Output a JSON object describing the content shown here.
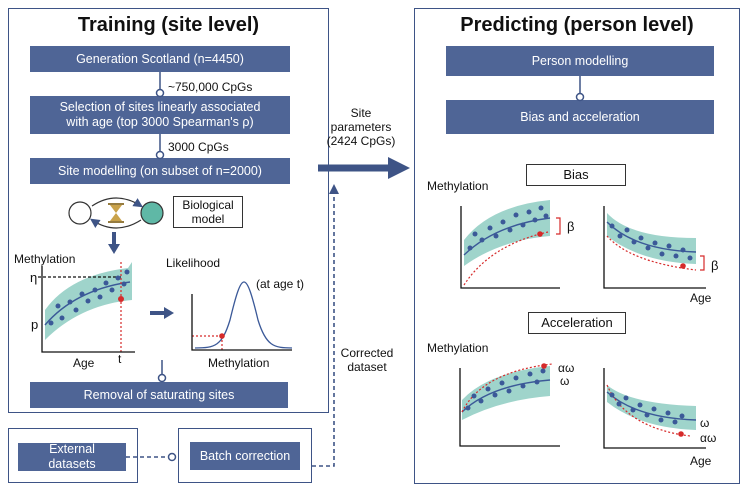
{
  "training": {
    "title": "Training (site level)",
    "step_cohort": "Generation Scotland (n=4450)",
    "count_cpgs": "~750,000 CpGs",
    "step_selection_line1": "Selection of sites linearly associated",
    "step_selection_line2": "with age (top 3000 Spearman's ρ)",
    "count_selected": "3000 CpGs",
    "step_modelling": "Site modelling (on subset of n=2000)",
    "biological_model_label": "Biological model",
    "methylation_axis": "Methylation",
    "eta_symbol": "η",
    "p_symbol": "p",
    "age_axis": "Age",
    "t_symbol": "t",
    "likelihood_label": "Likelihood",
    "at_age_label": "(at age t)",
    "likelihood_x_axis": "Methylation",
    "step_removal": "Removal of saturating sites"
  },
  "external": {
    "external_datasets": "External datasets",
    "batch_correction": "Batch correction"
  },
  "middle": {
    "site_parameters_line1": "Site",
    "site_parameters_line2": "parameters",
    "site_parameters_line3": "(2424 CpGs)",
    "corrected_line1": "Corrected",
    "corrected_line2": "dataset"
  },
  "predicting": {
    "title": "Predicting (person level)",
    "step_person": "Person modelling",
    "step_bias": "Bias and acceleration",
    "bias_label": "Bias",
    "methylation_axis_top": "Methylation",
    "beta_symbol": "β",
    "age_axis_top": "Age",
    "acceleration_label": "Acceleration",
    "methylation_axis_bottom": "Methylation",
    "alpha_omega": "αω",
    "omega": "ω",
    "age_axis_bottom": "Age"
  },
  "colors": {
    "panel_border": "#3e5486",
    "box_fill": "#4f6596",
    "band_fill": "#9fd4cb",
    "dot": "#3b5998",
    "red": "#d62a2a",
    "node_teal": "#5fb8a6",
    "hourglass": "#c9a24a"
  }
}
